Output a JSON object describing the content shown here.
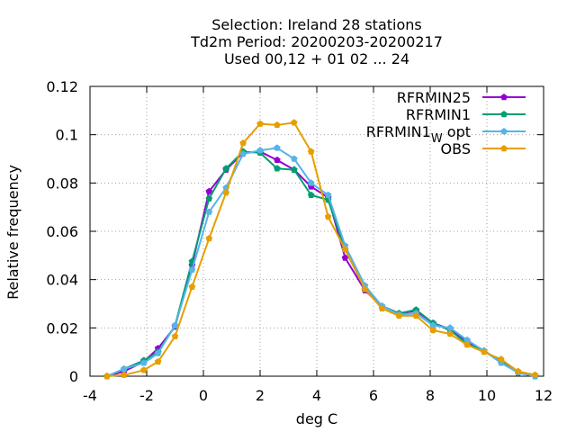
{
  "chart_data": {
    "type": "line",
    "title_lines": [
      "Selection: Ireland      28 stations",
      "Td2m  Period: 20200203-20200217",
      "Used  00,12  + 01 02 ... 24"
    ],
    "xlabel": "deg C",
    "ylabel": "Relative frequency",
    "xlim": [
      -4,
      12
    ],
    "ylim": [
      0,
      0.12
    ],
    "xticks": [
      -4,
      -2,
      0,
      2,
      4,
      6,
      8,
      10,
      12
    ],
    "yticks": [
      0,
      0.02,
      0.04,
      0.06,
      0.08,
      0.1,
      0.12
    ],
    "xtick_labels": [
      "-4",
      "-2",
      "0",
      "2",
      "4",
      "6",
      "8",
      "10",
      "12"
    ],
    "ytick_labels": [
      "0",
      "0.02",
      "0.04",
      "0.06",
      "0.08",
      "0.1",
      "0.12"
    ],
    "grid": true,
    "legend_position": "top-right",
    "x": [
      -3.4,
      -2.8,
      -2.1,
      -1.6,
      -1.0,
      -0.4,
      0.2,
      0.8,
      1.4,
      2.0,
      2.6,
      3.2,
      3.8,
      4.4,
      5.0,
      5.7,
      6.3,
      6.9,
      7.5,
      8.1,
      8.7,
      9.3,
      9.9,
      10.5,
      11.1,
      11.7
    ],
    "series": [
      {
        "name": "RFRMIN25",
        "color": "#9400d3",
        "values": [
          0.0,
          0.002,
          0.006,
          0.0115,
          0.0205,
          0.046,
          0.0765,
          0.0855,
          0.0925,
          0.093,
          0.0895,
          0.0855,
          0.0785,
          0.074,
          0.049,
          0.0355,
          0.029,
          0.026,
          0.027,
          0.022,
          0.0195,
          0.0145,
          0.0105,
          0.006,
          0.0015,
          0.0
        ]
      },
      {
        "name": "RFRMIN1",
        "color": "#009e73",
        "values": [
          0.0,
          0.003,
          0.0065,
          0.01,
          0.021,
          0.0475,
          0.0735,
          0.086,
          0.093,
          0.0925,
          0.086,
          0.0855,
          0.075,
          0.073,
          0.0525,
          0.036,
          0.029,
          0.026,
          0.0275,
          0.022,
          0.019,
          0.0135,
          0.0105,
          0.006,
          0.0015,
          0.0
        ]
      },
      {
        "name_main": "RFRMIN1",
        "name_sub": "W",
        "name_suffix": " opt",
        "color": "#56b4e9",
        "values": [
          0.0,
          0.003,
          0.0055,
          0.0095,
          0.021,
          0.044,
          0.068,
          0.078,
          0.092,
          0.0935,
          0.0945,
          0.09,
          0.08,
          0.075,
          0.054,
          0.0375,
          0.029,
          0.0255,
          0.026,
          0.021,
          0.02,
          0.015,
          0.0105,
          0.0055,
          0.0015,
          0.0
        ]
      },
      {
        "name": "OBS",
        "color": "#e69f00",
        "values": [
          0.0,
          0.0005,
          0.0025,
          0.006,
          0.0165,
          0.037,
          0.057,
          0.076,
          0.0965,
          0.1045,
          0.104,
          0.105,
          0.093,
          0.066,
          0.0525,
          0.036,
          0.028,
          0.025,
          0.025,
          0.019,
          0.0175,
          0.013,
          0.01,
          0.007,
          0.002,
          0.0005
        ]
      }
    ]
  }
}
